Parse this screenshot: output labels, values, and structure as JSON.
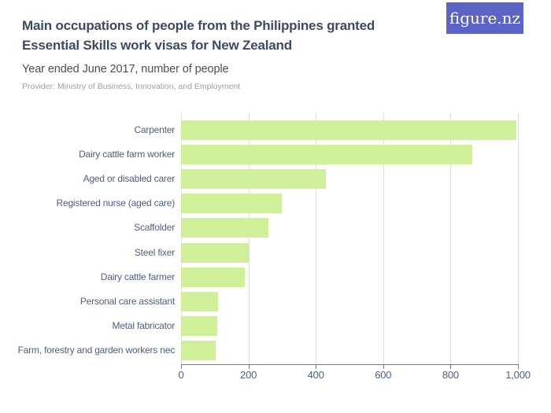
{
  "header": {
    "title_lines": [
      "Main occupations of people from the Philippines granted",
      "Essential Skills work visas for New Zealand"
    ],
    "subtitle": "Year ended June 2017, number of people",
    "provider": "Provider: Ministry of Business, Innovation, and Employment",
    "logo_text": "figure.nz"
  },
  "colors": {
    "bar": "#cff099",
    "title": "#3d4a63",
    "subtitle": "#4e4e4e",
    "provider": "#9e9e9e",
    "axis_text": "#4d6080",
    "gridline": "#e0e0e0",
    "axis_line": "#7a7a7a",
    "logo_bg": "#5c63c6",
    "logo_text_color": "#ffffff"
  },
  "chart_data": {
    "type": "bar",
    "orientation": "horizontal",
    "title": "Main occupations of people from the Philippines granted Essential Skills work visas for New Zealand",
    "subtitle": "Year ended June 2017, number of people",
    "xlabel": "",
    "ylabel": "",
    "categories": [
      "Carpenter",
      "Dairy cattle farm worker",
      "Aged or disabled carer",
      "Registered nurse (aged care)",
      "Scaffolder",
      "Steel fixer",
      "Dairy cattle farmer",
      "Personal care assistant",
      "Metal fabricator",
      "Farm, forestry and garden workers nec"
    ],
    "values": [
      995,
      865,
      430,
      300,
      260,
      200,
      190,
      110,
      108,
      102
    ],
    "xlim": [
      0,
      1000
    ],
    "xtick_values": [
      0,
      200,
      400,
      600,
      800,
      1000
    ],
    "xtick_labels": [
      "0",
      "200",
      "400",
      "600",
      "800",
      "1,000"
    ],
    "grid": "vertical",
    "legend": "none"
  }
}
